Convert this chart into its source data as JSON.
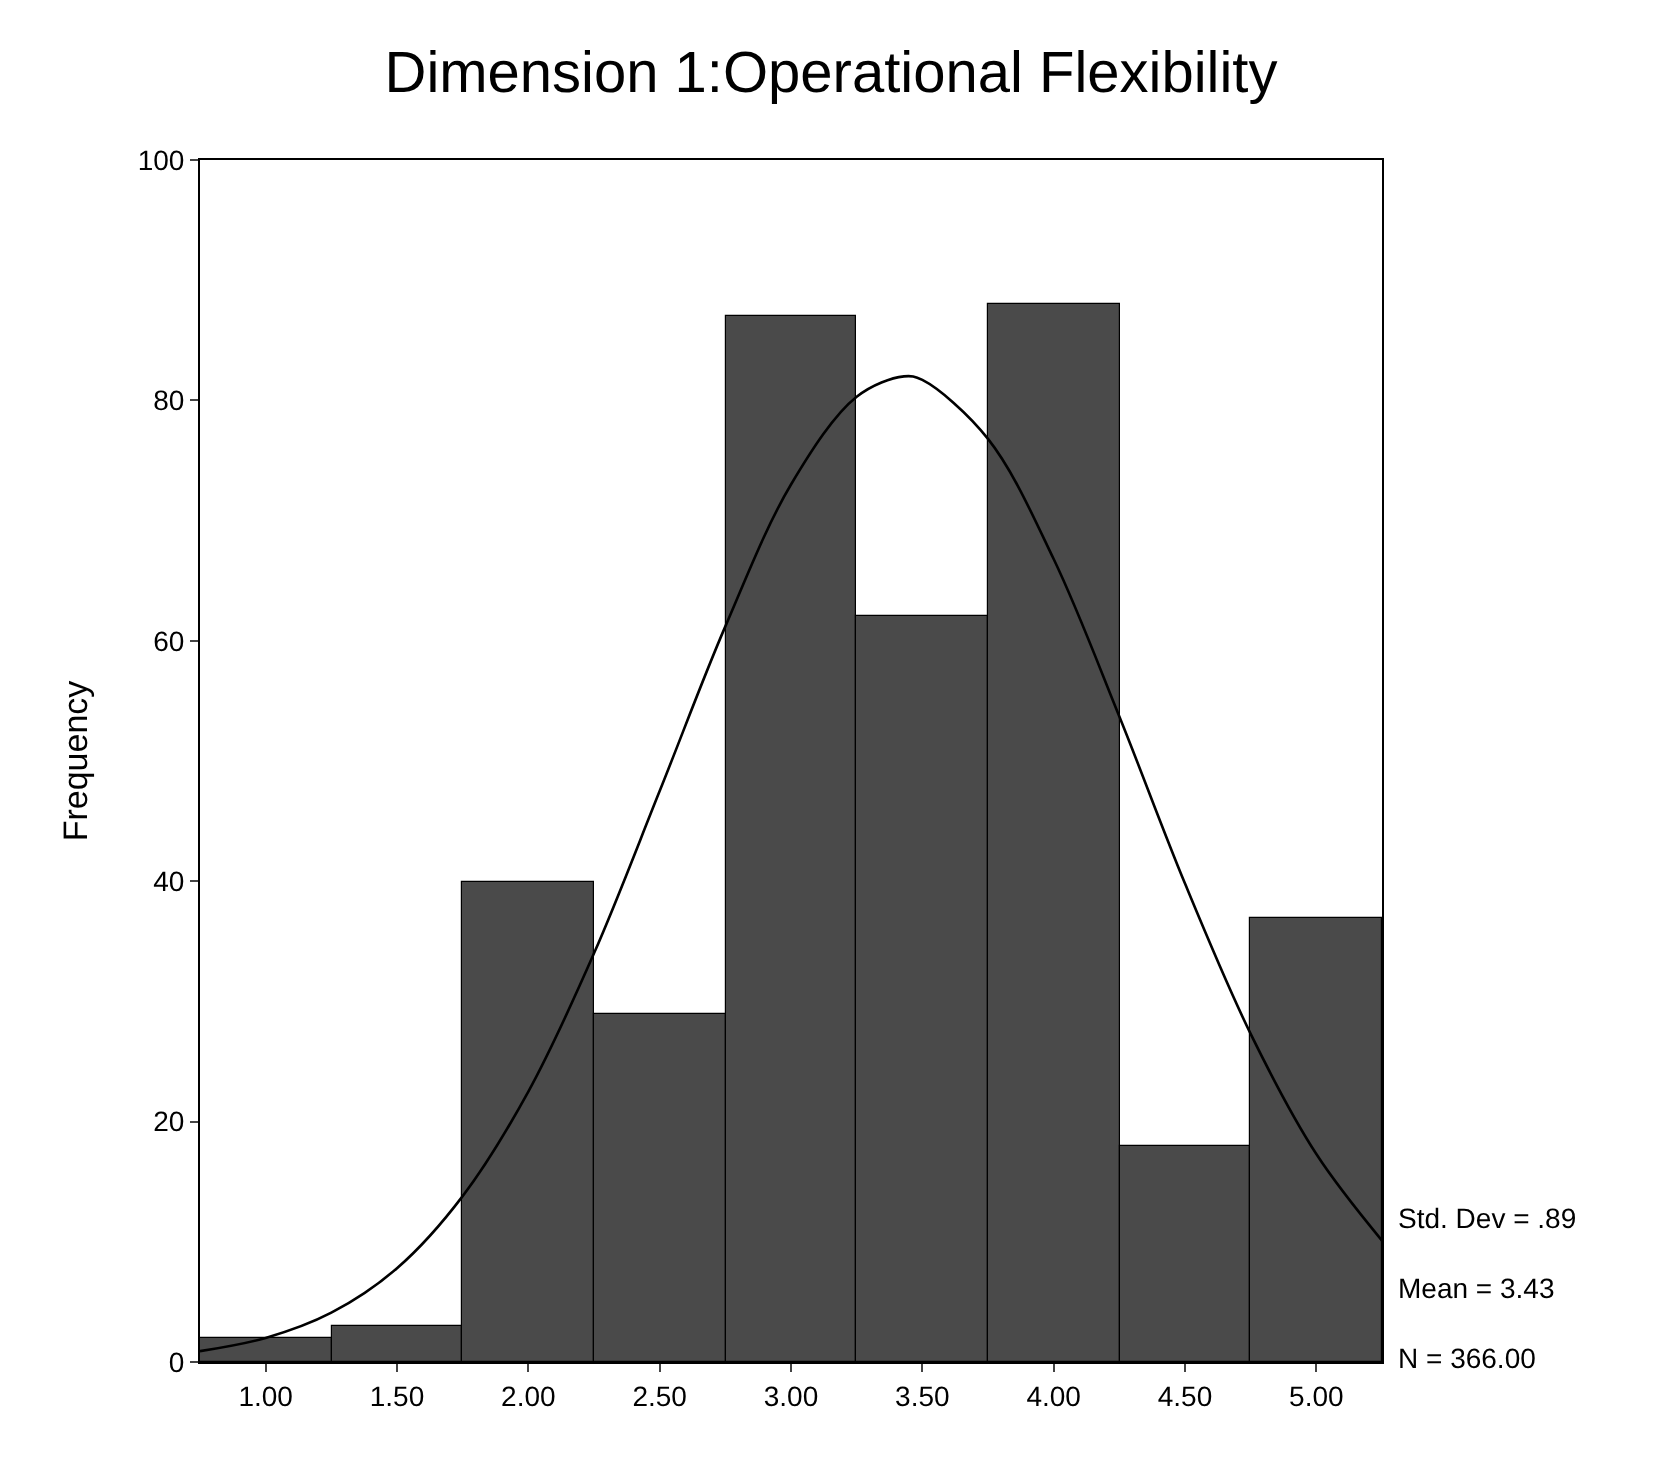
{
  "chart_data": {
    "type": "histogram",
    "title": "Dimension 1:Operational Flexibility",
    "ylabel": "Frequency",
    "bins": [
      0.75,
      1.25,
      1.75,
      2.25,
      2.75,
      3.25,
      3.75,
      4.25,
      4.75,
      5.25
    ],
    "values": [
      2,
      3,
      40,
      29,
      87,
      62,
      88,
      18,
      37
    ],
    "color": "#4a4a4a",
    "series": [
      {
        "type": "line",
        "color": "#000000",
        "x": [
          0.75,
          1.0,
          1.25,
          1.5,
          1.75,
          2.0,
          2.25,
          2.5,
          2.75,
          3.0,
          3.25,
          3.43,
          3.5,
          3.75,
          4.0,
          4.25,
          4.5,
          4.75,
          5.0,
          5.25
        ],
        "values": [
          0.9,
          2.0,
          4.1,
          7.8,
          13.8,
          22.5,
          34.0,
          47.5,
          61.2,
          73.0,
          80.3,
          82.0,
          81.7,
          76.8,
          66.8,
          53.7,
          39.8,
          27.3,
          17.3,
          10.1
        ]
      }
    ],
    "xlim": [
      0.75,
      5.25
    ],
    "xticks": [
      {
        "value": 1,
        "label": "1.00"
      },
      {
        "value": 1.5,
        "label": "1.50"
      },
      {
        "value": 2,
        "label": "2.00"
      },
      {
        "value": 2.5,
        "label": "2.50"
      },
      {
        "value": 3,
        "label": "3.00"
      },
      {
        "value": 3.5,
        "label": "3.50"
      },
      {
        "value": 4,
        "label": "4.00"
      },
      {
        "value": 4.5,
        "label": "4.50"
      },
      {
        "value": 5,
        "label": "5.00"
      }
    ],
    "ylim": [
      0,
      100
    ],
    "yticks": [
      0,
      20,
      40,
      60,
      80,
      100
    ],
    "annotations": [
      "Std. Dev = .89",
      "Mean = 3.43",
      "N = 366.00"
    ]
  }
}
